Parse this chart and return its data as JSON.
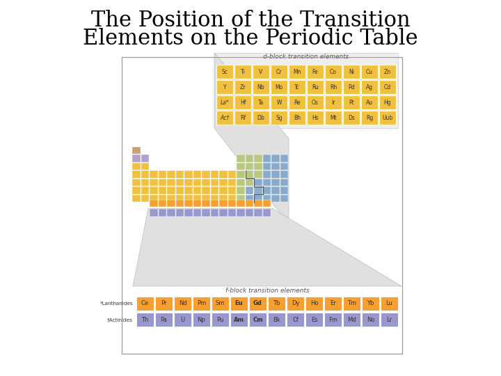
{
  "title_line1": "The Position of the Transition",
  "title_line2": "Elements on the Periodic Table",
  "title_fontsize": 22,
  "bg_color": "#ffffff",
  "d_block_color": "#f0c040",
  "f_lant_color": "#f5a030",
  "f_act_color": "#9898cc",
  "mini_tan_color": "#c8a070",
  "mini_purple_color": "#b0a0cc",
  "mini_yellow_color": "#f0c040",
  "mini_green_color": "#b8c880",
  "mini_blue_color": "#88aacc",
  "mini_lightblue_color": "#aabccc",
  "gray_bg": "#d8d8d8",
  "d_block_label": "d-block transition elements",
  "f_block_label": "f-block transition elements",
  "d_block_rows": [
    [
      "Sc",
      "Ti",
      "V",
      "Cr",
      "Mn",
      "Fe",
      "Co",
      "Ni",
      "Cu",
      "Zn"
    ],
    [
      "Y",
      "Zr",
      "Nb",
      "Mo",
      "Tc",
      "Ru",
      "Rh",
      "Pd",
      "Ag",
      "Cd"
    ],
    [
      "La*",
      "Hf",
      "Ta",
      "W",
      "Re",
      "Os",
      "Ir",
      "Pt",
      "Au",
      "Hg"
    ],
    [
      "Ac†",
      "Rf",
      "Db",
      "Sg",
      "Bh",
      "Hs",
      "Mt",
      "Ds",
      "Rg",
      "Uub"
    ]
  ],
  "lanthanide_label": "*Lanthanides",
  "actinide_label": "†Actinides",
  "lanthanide_elements": [
    "Ce",
    "Pr",
    "Nd",
    "Pm",
    "Sm",
    "Eu",
    "Gd",
    "Tb",
    "Dy",
    "Ho",
    "Er",
    "Tm",
    "Yb",
    "Lu"
  ],
  "actinide_elements": [
    "Th",
    "Pa",
    "U",
    "Np",
    "Pu",
    "Am",
    "Cm",
    "Bk",
    "Cf",
    "Es",
    "Fm",
    "Md",
    "No",
    "Lr"
  ]
}
